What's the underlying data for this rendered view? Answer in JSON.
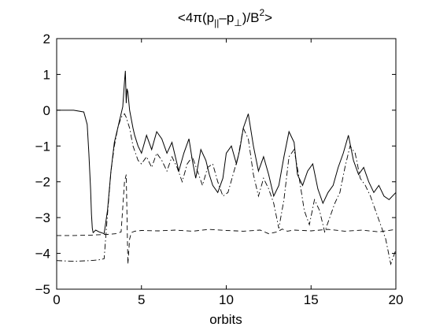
{
  "chart_data": {
    "type": "line",
    "title": {
      "prefix": "<4π(p",
      "sub1": "||",
      "mid": "–p",
      "sub2": "⊥",
      "suffix": ")/B",
      "sup": "2",
      "end": ">"
    },
    "xlabel": "orbits",
    "ylabel": "",
    "xlim": [
      0,
      20
    ],
    "ylim": [
      -5,
      2
    ],
    "xticks": [
      0,
      5,
      10,
      15,
      20
    ],
    "yticks": [
      -5,
      -4,
      -3,
      -2,
      -1,
      0,
      1,
      2
    ],
    "ytick_labels": [
      "−5",
      "−4",
      "−3",
      "−2",
      "−1",
      "0",
      "1",
      "2"
    ],
    "xtick_labels": [
      "0",
      "5",
      "10",
      "15",
      "20"
    ],
    "grid": false,
    "line_color": "#000000",
    "series": [
      {
        "style": "solid",
        "x": [
          0,
          1.0,
          1.6,
          1.8,
          1.9,
          2.0,
          2.05,
          2.1,
          2.15,
          2.2,
          2.3,
          2.5,
          2.8,
          3.0,
          3.2,
          3.4,
          3.6,
          3.8,
          3.9,
          4.0,
          4.05,
          4.1,
          4.15,
          4.2,
          4.3,
          4.5,
          4.6,
          4.8,
          5.0,
          5.3,
          5.6,
          5.9,
          6.2,
          6.5,
          6.8,
          7.0,
          7.2,
          7.5,
          7.8,
          8.0,
          8.2,
          8.5,
          8.8,
          9.0,
          9.2,
          9.5,
          9.8,
          10.0,
          10.3,
          10.6,
          10.8,
          11.0,
          11.3,
          11.6,
          11.9,
          12.2,
          12.5,
          12.8,
          13.1,
          13.4,
          13.7,
          14.0,
          14.2,
          14.5,
          14.8,
          15.1,
          15.4,
          15.7,
          16.0,
          16.3,
          16.6,
          16.9,
          17.2,
          17.5,
          17.8,
          18.1,
          18.4,
          18.7,
          19.0,
          19.3,
          19.6,
          20.0
        ],
        "y": [
          0.0,
          0.0,
          -0.05,
          -0.4,
          -1.2,
          -2.2,
          -2.9,
          -3.3,
          -3.42,
          -3.4,
          -3.35,
          -3.4,
          -3.45,
          -2.8,
          -1.7,
          -0.9,
          -0.5,
          -0.1,
          0.1,
          0.8,
          1.1,
          0.2,
          0.6,
          0.5,
          0.0,
          -0.5,
          -0.7,
          -1.0,
          -1.2,
          -0.7,
          -1.1,
          -0.6,
          -0.8,
          -1.2,
          -0.9,
          -1.3,
          -1.7,
          -1.2,
          -0.8,
          -1.4,
          -1.9,
          -1.1,
          -1.4,
          -1.8,
          -2.1,
          -2.3,
          -1.9,
          -1.2,
          -1.0,
          -1.5,
          -1.1,
          -0.5,
          -0.1,
          -1.0,
          -1.7,
          -1.3,
          -1.8,
          -2.4,
          -2.1,
          -1.3,
          -0.6,
          -0.9,
          -1.8,
          -2.1,
          -1.7,
          -1.5,
          -2.2,
          -2.6,
          -2.3,
          -2.1,
          -1.6,
          -1.2,
          -0.7,
          -1.4,
          -1.8,
          -1.6,
          -2.0,
          -2.3,
          -2.1,
          -2.4,
          -2.5,
          -2.3
        ]
      },
      {
        "style": "dashdot",
        "x": [
          0,
          1.0,
          2.0,
          2.5,
          2.8,
          3.0,
          3.2,
          3.4,
          3.6,
          3.8,
          4.0,
          4.1,
          4.3,
          4.5,
          4.8,
          5.0,
          5.3,
          5.6,
          5.9,
          6.2,
          6.5,
          6.8,
          7.1,
          7.4,
          7.7,
          8.0,
          8.3,
          8.6,
          8.9,
          9.2,
          9.5,
          9.8,
          10.1,
          10.4,
          10.7,
          11.0,
          11.3,
          11.6,
          11.9,
          12.2,
          12.5,
          12.8,
          13.1,
          13.4,
          13.7,
          14.0,
          14.3,
          14.6,
          14.9,
          15.2,
          15.5,
          15.8,
          16.1,
          16.4,
          16.7,
          17.0,
          17.3,
          17.6,
          17.9,
          18.2,
          18.5,
          18.8,
          19.1,
          19.4,
          19.7,
          20.0
        ],
        "y": [
          -4.2,
          -4.22,
          -4.2,
          -4.18,
          -4.15,
          -2.9,
          -1.7,
          -1.0,
          -0.5,
          -0.2,
          -0.1,
          -0.2,
          -0.5,
          -1.0,
          -1.4,
          -1.5,
          -1.3,
          -1.6,
          -1.2,
          -1.4,
          -1.7,
          -1.3,
          -1.6,
          -2.0,
          -1.5,
          -1.3,
          -1.7,
          -2.1,
          -1.6,
          -1.5,
          -2.0,
          -2.4,
          -2.3,
          -1.8,
          -1.3,
          -0.5,
          -0.8,
          -1.8,
          -2.4,
          -1.9,
          -2.2,
          -2.6,
          -3.3,
          -2.5,
          -1.3,
          -1.1,
          -1.9,
          -2.8,
          -3.2,
          -2.5,
          -2.8,
          -3.4,
          -3.0,
          -2.6,
          -2.3,
          -1.6,
          -1.0,
          -1.2,
          -1.9,
          -2.1,
          -2.4,
          -2.8,
          -3.2,
          -3.6,
          -4.3,
          -3.9
        ]
      },
      {
        "style": "dashed",
        "x": [
          0,
          1.0,
          2.0,
          3.0,
          3.5,
          3.8,
          4.0,
          4.1,
          4.2,
          4.3,
          4.4,
          4.6,
          5.0,
          6.0,
          7.0,
          8.0,
          9.0,
          10.0,
          11.0,
          12.0,
          12.5,
          13.0,
          13.3,
          13.6,
          14.0,
          15.0,
          16.0,
          17.0,
          18.0,
          19.0,
          20.0
        ],
        "y": [
          -3.5,
          -3.5,
          -3.49,
          -3.47,
          -3.45,
          -3.4,
          -2.0,
          -1.8,
          -4.3,
          -3.6,
          -3.42,
          -3.38,
          -3.36,
          -3.37,
          -3.35,
          -3.38,
          -3.33,
          -3.36,
          -3.38,
          -3.35,
          -3.45,
          -3.4,
          -3.32,
          -3.38,
          -3.35,
          -3.37,
          -3.33,
          -3.38,
          -3.35,
          -3.4,
          -3.33
        ]
      }
    ]
  }
}
